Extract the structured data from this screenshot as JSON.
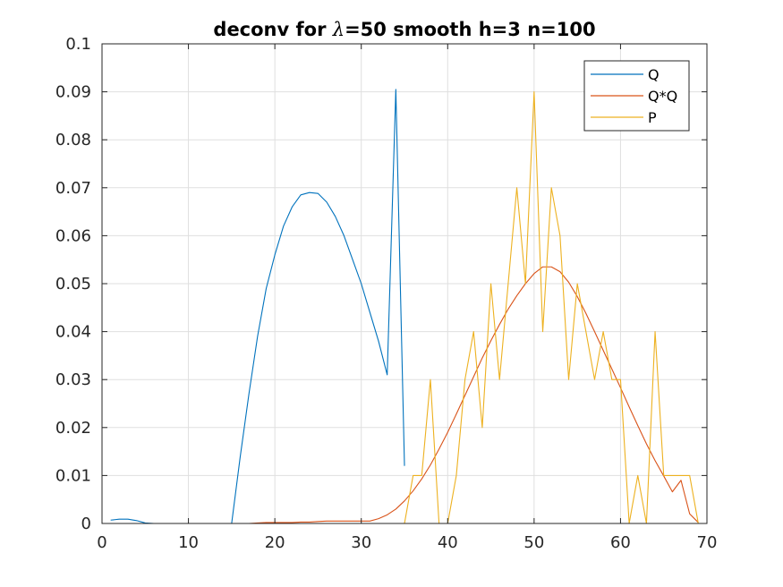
{
  "chart_data": {
    "type": "line",
    "title_prefix": "deconv for ",
    "title_symbol": "λ",
    "title_suffix": "=50 smooth h=3 n=100",
    "xlabel": "",
    "ylabel": "",
    "xlim": [
      0,
      70
    ],
    "ylim": [
      0,
      0.1
    ],
    "grid": true,
    "legend_position": "top-right",
    "x_ticks": [
      0,
      10,
      20,
      30,
      40,
      50,
      60,
      70
    ],
    "x_tick_labels": [
      "0",
      "10",
      "20",
      "30",
      "40",
      "50",
      "60",
      "70"
    ],
    "y_ticks": [
      0,
      0.01,
      0.02,
      0.03,
      0.04,
      0.05,
      0.06,
      0.07,
      0.08,
      0.09,
      0.1
    ],
    "y_tick_labels": [
      "0",
      "0.01",
      "0.02",
      "0.03",
      "0.04",
      "0.05",
      "0.06",
      "0.07",
      "0.08",
      "0.09",
      "0.1"
    ],
    "series": [
      {
        "name": "Q",
        "color": "#0072BD",
        "x": [
          1,
          2,
          3,
          4,
          5,
          6,
          7,
          8,
          9,
          10,
          11,
          12,
          13,
          14,
          15,
          16,
          17,
          18,
          19,
          20,
          21,
          22,
          23,
          24,
          25,
          26,
          27,
          28,
          29,
          30,
          31,
          32,
          33,
          34,
          35
        ],
        "y": [
          0.0007,
          0.0009,
          0.0009,
          0.0006,
          0.0001,
          0.0,
          0.0,
          0.0,
          0.0,
          0.0,
          0.0,
          0.0,
          0.0,
          0.0,
          0.0,
          0.014,
          0.027,
          0.039,
          0.049,
          0.056,
          0.062,
          0.066,
          0.0685,
          0.069,
          0.0688,
          0.067,
          0.064,
          0.06,
          0.055,
          0.05,
          0.044,
          0.038,
          0.031,
          0.0905,
          0.012
        ]
      },
      {
        "name": "Q*Q",
        "color": "#D95319",
        "x": [
          1,
          2,
          3,
          4,
          5,
          6,
          7,
          8,
          9,
          10,
          11,
          12,
          13,
          14,
          15,
          16,
          17,
          18,
          19,
          20,
          21,
          22,
          23,
          24,
          25,
          26,
          27,
          28,
          29,
          30,
          31,
          32,
          33,
          34,
          35,
          36,
          37,
          38,
          39,
          40,
          41,
          42,
          43,
          44,
          45,
          46,
          47,
          48,
          49,
          50,
          51,
          52,
          53,
          54,
          55,
          56,
          57,
          58,
          59,
          60,
          61,
          62,
          63,
          64,
          65,
          66,
          67,
          68,
          69
        ],
        "y": [
          0,
          0,
          0,
          0,
          0,
          0,
          0,
          0,
          0,
          0,
          0,
          0,
          0,
          0,
          0,
          0,
          0,
          0.0001,
          0.0002,
          0.0002,
          0.0002,
          0.0002,
          0.0003,
          0.0003,
          0.0004,
          0.0005,
          0.0005,
          0.0005,
          0.0005,
          0.0005,
          0.0005,
          0.001,
          0.0018,
          0.003,
          0.0047,
          0.0068,
          0.0093,
          0.0122,
          0.0155,
          0.019,
          0.0228,
          0.0267,
          0.0306,
          0.0345,
          0.0381,
          0.0415,
          0.0447,
          0.0475,
          0.05,
          0.0521,
          0.0535,
          0.0535,
          0.0525,
          0.0503,
          0.0473,
          0.0438,
          0.04,
          0.0361,
          0.0322,
          0.0283,
          0.0243,
          0.0204,
          0.0166,
          0.0131,
          0.0099,
          0.0066,
          0.009,
          0.002,
          0.0002
        ]
      },
      {
        "name": "P",
        "color": "#EDB120",
        "x": [
          1,
          2,
          3,
          4,
          5,
          6,
          7,
          8,
          9,
          10,
          11,
          12,
          13,
          14,
          15,
          16,
          17,
          18,
          19,
          20,
          21,
          22,
          23,
          24,
          25,
          26,
          27,
          28,
          29,
          30,
          31,
          32,
          33,
          34,
          35,
          36,
          37,
          38,
          39,
          40,
          41,
          42,
          43,
          44,
          45,
          46,
          47,
          48,
          49,
          50,
          51,
          52,
          53,
          54,
          55,
          56,
          57,
          58,
          59,
          60,
          61,
          62,
          63,
          64,
          65,
          66,
          67,
          68,
          69
        ],
        "y": [
          0,
          0,
          0,
          0,
          0,
          0,
          0,
          0,
          0,
          0,
          0,
          0,
          0,
          0,
          0,
          0,
          0,
          0,
          0,
          0,
          0,
          0,
          0,
          0,
          0,
          0,
          0,
          0,
          0,
          0,
          0,
          0,
          0,
          0,
          0,
          0.01,
          0.01,
          0.03,
          0.0,
          0.0,
          0.01,
          0.03,
          0.04,
          0.02,
          0.05,
          0.03,
          0.05,
          0.07,
          0.05,
          0.09,
          0.04,
          0.07,
          0.06,
          0.03,
          0.05,
          0.04,
          0.03,
          0.04,
          0.03,
          0.03,
          0.0,
          0.01,
          0.0,
          0.04,
          0.01,
          0.01,
          0.01,
          0.01,
          0.0
        ]
      }
    ]
  }
}
